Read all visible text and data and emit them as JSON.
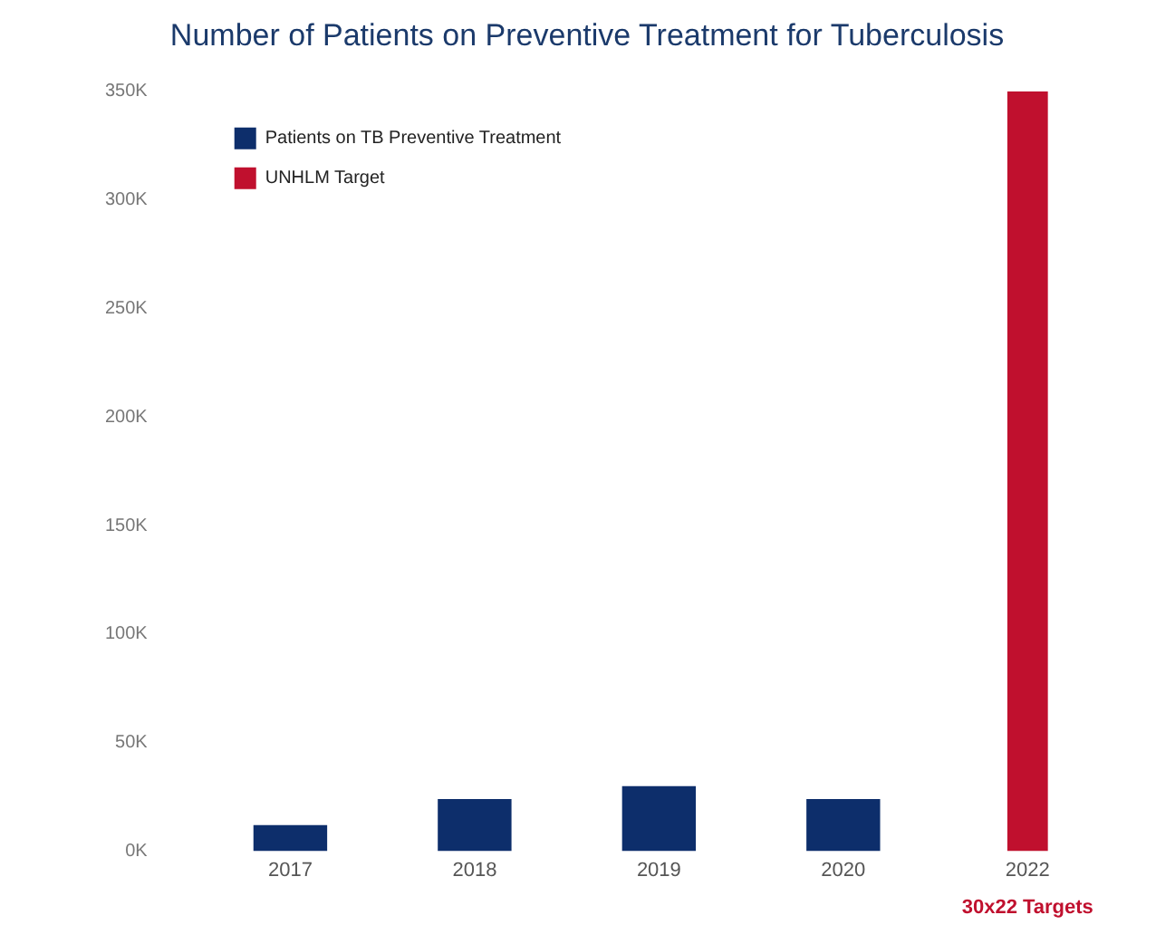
{
  "chart_data": {
    "type": "bar",
    "title": "Number of Patients on Preventive Treatment for Tuberculosis",
    "categories": [
      "2017",
      "2018",
      "2019",
      "2020",
      "2022"
    ],
    "series": [
      {
        "name": "Patients on TB Preventive Treatment",
        "color": "#0d2e6b",
        "values": [
          12000,
          24000,
          30000,
          24000,
          null
        ]
      },
      {
        "name": "UNHLM Target",
        "color": "#c0102e",
        "values": [
          null,
          null,
          null,
          null,
          350000
        ]
      }
    ],
    "stacked": true,
    "ylim": [
      0,
      350000
    ],
    "yticks": [
      {
        "value": 0,
        "label": "0K"
      },
      {
        "value": 50000,
        "label": "50K"
      },
      {
        "value": 100000,
        "label": "100K"
      },
      {
        "value": 150000,
        "label": "150K"
      },
      {
        "value": 200000,
        "label": "200K"
      },
      {
        "value": 250000,
        "label": "250K"
      },
      {
        "value": 300000,
        "label": "300K"
      },
      {
        "value": 350000,
        "label": "350K"
      }
    ],
    "grid": false,
    "legend": "top left",
    "annotations": [
      "30x22 Targets"
    ]
  }
}
